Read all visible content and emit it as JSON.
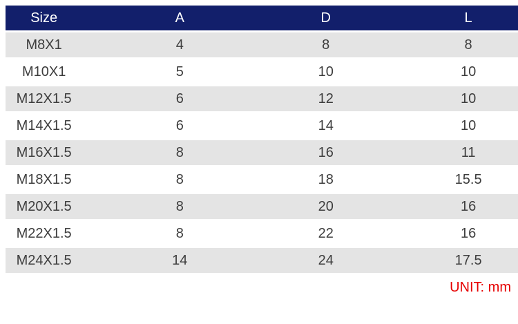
{
  "chart_data": {
    "type": "table",
    "columns": [
      "Size",
      "A",
      "D",
      "L"
    ],
    "rows": [
      [
        "M8X1",
        "4",
        "8",
        "8"
      ],
      [
        "M10X1",
        "5",
        "10",
        "10"
      ],
      [
        "M12X1.5",
        "6",
        "12",
        "10"
      ],
      [
        "M14X1.5",
        "6",
        "14",
        "10"
      ],
      [
        "M16X1.5",
        "8",
        "16",
        "11"
      ],
      [
        "M18X1.5",
        "8",
        "18",
        "15.5"
      ],
      [
        "M20X1.5",
        "8",
        "20",
        "16"
      ],
      [
        "M22X1.5",
        "8",
        "22",
        "16"
      ],
      [
        "M24X1.5",
        "14",
        "24",
        "17.5"
      ]
    ],
    "note": "UNIT: mm",
    "legend_position": "none",
    "grid": false
  },
  "footer": {
    "unit_label": "UNIT: mm"
  },
  "colors": {
    "header_bg": "#121f6b",
    "header_text": "#ffffff",
    "row_alt_bg": "#e4e4e4",
    "row_bg": "#ffffff",
    "body_text": "#3d3d3d",
    "unit_text": "#e60000"
  }
}
